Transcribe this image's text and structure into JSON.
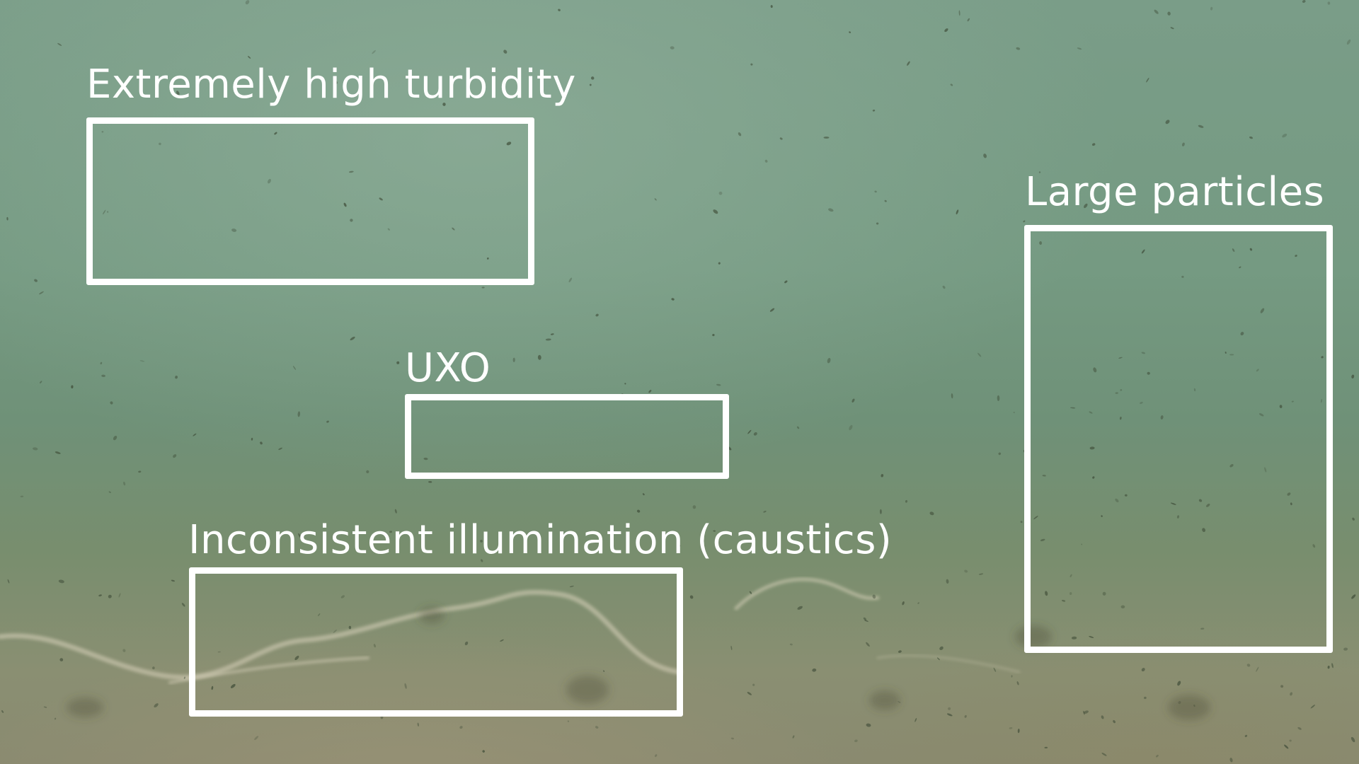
{
  "annotations": {
    "turbidity": {
      "label": "Extremely high turbidity"
    },
    "uxo": {
      "label": "UXO"
    },
    "caustics": {
      "label": "Inconsistent illumination (caustics)"
    },
    "particles": {
      "label": "Large particles"
    }
  },
  "colors": {
    "annotation": "#ffffff",
    "water": "#7a9d88",
    "seabed": "#8a8a70"
  }
}
